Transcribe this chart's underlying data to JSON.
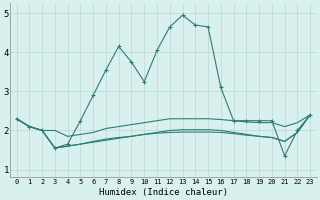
{
  "xlabel": "Humidex (Indice chaleur)",
  "x": [
    0,
    1,
    2,
    3,
    4,
    5,
    6,
    7,
    8,
    9,
    10,
    11,
    12,
    13,
    14,
    15,
    16,
    17,
    18,
    19,
    20,
    21,
    22,
    23
  ],
  "line1": [
    2.3,
    2.1,
    2.0,
    1.55,
    1.65,
    2.25,
    2.9,
    3.55,
    4.15,
    3.75,
    3.25,
    4.05,
    4.65,
    4.95,
    4.7,
    4.65,
    3.1,
    2.25,
    2.25,
    2.25,
    2.25,
    1.35,
    2.0,
    2.4
  ],
  "line2": [
    2.3,
    2.1,
    2.0,
    2.0,
    1.85,
    1.9,
    1.95,
    2.05,
    2.1,
    2.15,
    2.2,
    2.25,
    2.3,
    2.3,
    2.3,
    2.3,
    2.28,
    2.25,
    2.22,
    2.2,
    2.2,
    2.1,
    2.2,
    2.4
  ],
  "line3": [
    2.3,
    2.1,
    2.0,
    1.55,
    1.6,
    1.65,
    1.7,
    1.75,
    1.8,
    1.85,
    1.9,
    1.95,
    2.0,
    2.02,
    2.02,
    2.02,
    2.0,
    1.95,
    1.9,
    1.85,
    1.82,
    1.72,
    1.95,
    2.4
  ],
  "line4": [
    2.3,
    2.1,
    2.0,
    1.55,
    1.6,
    1.65,
    1.72,
    1.78,
    1.82,
    1.85,
    1.9,
    1.93,
    1.95,
    1.96,
    1.96,
    1.96,
    1.95,
    1.92,
    1.88,
    1.85,
    1.82,
    1.72,
    1.95,
    2.4
  ],
  "line_color": "#2e7d72",
  "bg_color": "#d8f0ee",
  "grid_color": "#c0dcd8",
  "ylim": [
    0.8,
    5.25
  ],
  "yticks": [
    1,
    2,
    3,
    4,
    5
  ],
  "xlim": [
    -0.5,
    23.5
  ]
}
